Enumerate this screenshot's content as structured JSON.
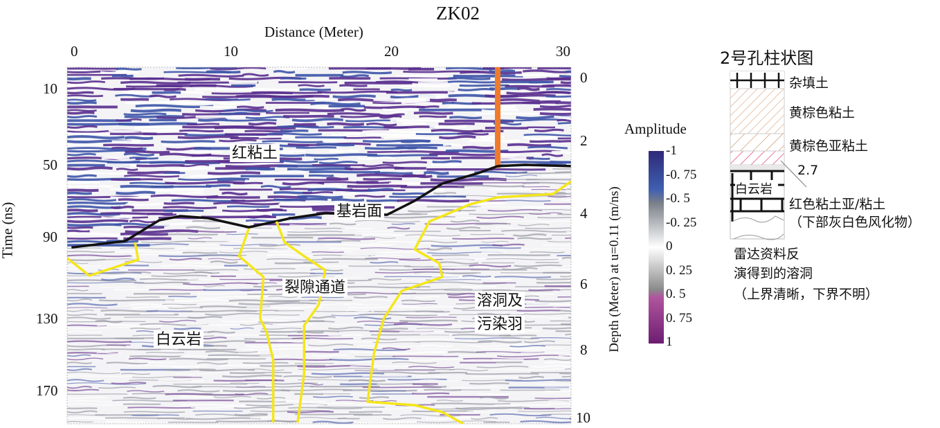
{
  "chart_data": {
    "type": "heatmap",
    "title": "ZK02",
    "xlabel": "Distance (Meter)",
    "ylabel": "Time (ns)",
    "y2label": "Depth (Meter) at u=0.11 (m/ns)",
    "xlim": [
      0,
      30
    ],
    "ylim": [
      0,
      190
    ],
    "y2lim": [
      0,
      10
    ],
    "x_ticks": [
      "0",
      "10",
      "20",
      "30"
    ],
    "y_ticks": [
      "10",
      "50",
      "90",
      "130",
      "170"
    ],
    "y2_ticks": [
      "0",
      "2",
      "4",
      "6",
      "8",
      "10"
    ],
    "colorbar": {
      "title": "Amplitude",
      "ticks": [
        "-1",
        "-0. 75",
        "-0. 5",
        "-0. 25",
        "0",
        "0. 25",
        "0. 5",
        "0. 75",
        "1"
      ],
      "colors": [
        "#2e2a78",
        "#3f5fb0",
        "#7a7f88",
        "#ffffff",
        "#8a8a8a",
        "#b0559e",
        "#6d1d72"
      ]
    },
    "annotations": {
      "red_clay": "红粘土",
      "bedrock_surface": "基岩面",
      "fissure_channel": "裂隙通道",
      "dolomite": "白云岩",
      "karst_1": "溶洞及",
      "karst_2": "污染羽"
    },
    "borehole_marker": {
      "distance": 26,
      "time_range": [
        0,
        52
      ],
      "color": "#f07a2a"
    },
    "bedrock_line": {
      "color": "#111111",
      "points": [
        [
          -0.2,
          94
        ],
        [
          3.1,
          90.6
        ],
        [
          5.2,
          79.6
        ],
        [
          6.5,
          77.4
        ],
        [
          8.2,
          78.5
        ],
        [
          10.7,
          83.3
        ],
        [
          13.3,
          78.5
        ],
        [
          15.4,
          75.9
        ],
        [
          19.2,
          76.7
        ],
        [
          20.9,
          69.3
        ],
        [
          22.6,
          60.2
        ],
        [
          24.8,
          54.7
        ],
        [
          26,
          51
        ],
        [
          27.7,
          50.3
        ],
        [
          30.5,
          51
        ]
      ]
    },
    "anomaly_lines": {
      "color": "#f5e61a",
      "lines": [
        [
          [
            -0.5,
            99.4
          ],
          [
            0.9,
            108.9
          ],
          [
            2.6,
            104.1
          ],
          [
            3.9,
            100.5
          ],
          [
            3.7,
            91.3
          ]
        ],
        [
          [
            10.7,
            84
          ],
          [
            10.1,
            98.6
          ],
          [
            11.6,
            109.6
          ],
          [
            11.4,
            131.6
          ],
          [
            11.8,
            138.9
          ],
          [
            12.2,
            153.6
          ],
          [
            12.2,
            186.6
          ]
        ],
        [
          [
            12.4,
            80.3
          ],
          [
            12.9,
            91.3
          ],
          [
            14.1,
            98.6
          ],
          [
            15.4,
            106
          ],
          [
            15,
            124.3
          ],
          [
            14.1,
            135.3
          ],
          [
            14.1,
            160.9
          ],
          [
            13.7,
            186.6
          ]
        ],
        [
          [
            30.5,
            59.1
          ],
          [
            29.4,
            65.7
          ],
          [
            26,
            67.5
          ],
          [
            24.3,
            71.2
          ],
          [
            21.8,
            80.3
          ],
          [
            20.9,
            95
          ],
          [
            22.4,
            102.3
          ],
          [
            22.6,
            109.6
          ],
          [
            20.1,
            117
          ],
          [
            19,
            131.6
          ],
          [
            18.4,
            149.9
          ],
          [
            18,
            175.6
          ],
          [
            20.9,
            177.4
          ],
          [
            22.6,
            181.1
          ],
          [
            23.9,
            187.3
          ]
        ]
      ]
    }
  },
  "borehole": {
    "title": "2号孔柱状图",
    "layers": [
      "杂填土",
      "黄棕色粘土",
      "黄棕色亚粘土",
      "2.7",
      "白云岩",
      "红色粘土亚/粘土",
      "（下部灰白色风化物）"
    ],
    "note": [
      "雷达资料反",
      "演得到的溶洞",
      "（上界清晰，下界不明）"
    ]
  }
}
